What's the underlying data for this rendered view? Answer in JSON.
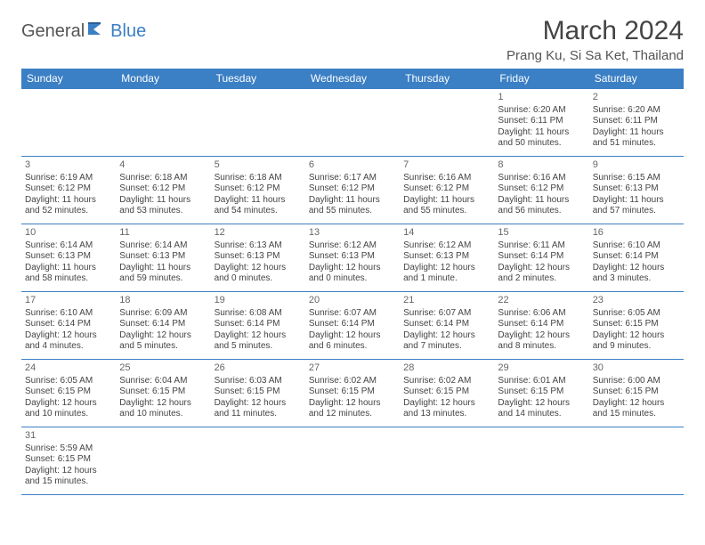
{
  "logo": {
    "part1": "General",
    "part2": "Blue"
  },
  "title": "March 2024",
  "location": "Prang Ku, Si Sa Ket, Thailand",
  "dayHeaders": [
    "Sunday",
    "Monday",
    "Tuesday",
    "Wednesday",
    "Thursday",
    "Friday",
    "Saturday"
  ],
  "colors": {
    "headerBg": "#3b7fc4",
    "headerText": "#ffffff",
    "border": "#3b7fc4",
    "text": "#444444",
    "logoAccent": "#3b7fc4"
  },
  "weeks": [
    [
      null,
      null,
      null,
      null,
      null,
      {
        "n": "1",
        "sr": "Sunrise: 6:20 AM",
        "ss": "Sunset: 6:11 PM",
        "dl": "Daylight: 11 hours and 50 minutes."
      },
      {
        "n": "2",
        "sr": "Sunrise: 6:20 AM",
        "ss": "Sunset: 6:11 PM",
        "dl": "Daylight: 11 hours and 51 minutes."
      }
    ],
    [
      {
        "n": "3",
        "sr": "Sunrise: 6:19 AM",
        "ss": "Sunset: 6:12 PM",
        "dl": "Daylight: 11 hours and 52 minutes."
      },
      {
        "n": "4",
        "sr": "Sunrise: 6:18 AM",
        "ss": "Sunset: 6:12 PM",
        "dl": "Daylight: 11 hours and 53 minutes."
      },
      {
        "n": "5",
        "sr": "Sunrise: 6:18 AM",
        "ss": "Sunset: 6:12 PM",
        "dl": "Daylight: 11 hours and 54 minutes."
      },
      {
        "n": "6",
        "sr": "Sunrise: 6:17 AM",
        "ss": "Sunset: 6:12 PM",
        "dl": "Daylight: 11 hours and 55 minutes."
      },
      {
        "n": "7",
        "sr": "Sunrise: 6:16 AM",
        "ss": "Sunset: 6:12 PM",
        "dl": "Daylight: 11 hours and 55 minutes."
      },
      {
        "n": "8",
        "sr": "Sunrise: 6:16 AM",
        "ss": "Sunset: 6:12 PM",
        "dl": "Daylight: 11 hours and 56 minutes."
      },
      {
        "n": "9",
        "sr": "Sunrise: 6:15 AM",
        "ss": "Sunset: 6:13 PM",
        "dl": "Daylight: 11 hours and 57 minutes."
      }
    ],
    [
      {
        "n": "10",
        "sr": "Sunrise: 6:14 AM",
        "ss": "Sunset: 6:13 PM",
        "dl": "Daylight: 11 hours and 58 minutes."
      },
      {
        "n": "11",
        "sr": "Sunrise: 6:14 AM",
        "ss": "Sunset: 6:13 PM",
        "dl": "Daylight: 11 hours and 59 minutes."
      },
      {
        "n": "12",
        "sr": "Sunrise: 6:13 AM",
        "ss": "Sunset: 6:13 PM",
        "dl": "Daylight: 12 hours and 0 minutes."
      },
      {
        "n": "13",
        "sr": "Sunrise: 6:12 AM",
        "ss": "Sunset: 6:13 PM",
        "dl": "Daylight: 12 hours and 0 minutes."
      },
      {
        "n": "14",
        "sr": "Sunrise: 6:12 AM",
        "ss": "Sunset: 6:13 PM",
        "dl": "Daylight: 12 hours and 1 minute."
      },
      {
        "n": "15",
        "sr": "Sunrise: 6:11 AM",
        "ss": "Sunset: 6:14 PM",
        "dl": "Daylight: 12 hours and 2 minutes."
      },
      {
        "n": "16",
        "sr": "Sunrise: 6:10 AM",
        "ss": "Sunset: 6:14 PM",
        "dl": "Daylight: 12 hours and 3 minutes."
      }
    ],
    [
      {
        "n": "17",
        "sr": "Sunrise: 6:10 AM",
        "ss": "Sunset: 6:14 PM",
        "dl": "Daylight: 12 hours and 4 minutes."
      },
      {
        "n": "18",
        "sr": "Sunrise: 6:09 AM",
        "ss": "Sunset: 6:14 PM",
        "dl": "Daylight: 12 hours and 5 minutes."
      },
      {
        "n": "19",
        "sr": "Sunrise: 6:08 AM",
        "ss": "Sunset: 6:14 PM",
        "dl": "Daylight: 12 hours and 5 minutes."
      },
      {
        "n": "20",
        "sr": "Sunrise: 6:07 AM",
        "ss": "Sunset: 6:14 PM",
        "dl": "Daylight: 12 hours and 6 minutes."
      },
      {
        "n": "21",
        "sr": "Sunrise: 6:07 AM",
        "ss": "Sunset: 6:14 PM",
        "dl": "Daylight: 12 hours and 7 minutes."
      },
      {
        "n": "22",
        "sr": "Sunrise: 6:06 AM",
        "ss": "Sunset: 6:14 PM",
        "dl": "Daylight: 12 hours and 8 minutes."
      },
      {
        "n": "23",
        "sr": "Sunrise: 6:05 AM",
        "ss": "Sunset: 6:15 PM",
        "dl": "Daylight: 12 hours and 9 minutes."
      }
    ],
    [
      {
        "n": "24",
        "sr": "Sunrise: 6:05 AM",
        "ss": "Sunset: 6:15 PM",
        "dl": "Daylight: 12 hours and 10 minutes."
      },
      {
        "n": "25",
        "sr": "Sunrise: 6:04 AM",
        "ss": "Sunset: 6:15 PM",
        "dl": "Daylight: 12 hours and 10 minutes."
      },
      {
        "n": "26",
        "sr": "Sunrise: 6:03 AM",
        "ss": "Sunset: 6:15 PM",
        "dl": "Daylight: 12 hours and 11 minutes."
      },
      {
        "n": "27",
        "sr": "Sunrise: 6:02 AM",
        "ss": "Sunset: 6:15 PM",
        "dl": "Daylight: 12 hours and 12 minutes."
      },
      {
        "n": "28",
        "sr": "Sunrise: 6:02 AM",
        "ss": "Sunset: 6:15 PM",
        "dl": "Daylight: 12 hours and 13 minutes."
      },
      {
        "n": "29",
        "sr": "Sunrise: 6:01 AM",
        "ss": "Sunset: 6:15 PM",
        "dl": "Daylight: 12 hours and 14 minutes."
      },
      {
        "n": "30",
        "sr": "Sunrise: 6:00 AM",
        "ss": "Sunset: 6:15 PM",
        "dl": "Daylight: 12 hours and 15 minutes."
      }
    ],
    [
      {
        "n": "31",
        "sr": "Sunrise: 5:59 AM",
        "ss": "Sunset: 6:15 PM",
        "dl": "Daylight: 12 hours and 15 minutes."
      },
      null,
      null,
      null,
      null,
      null,
      null
    ]
  ]
}
